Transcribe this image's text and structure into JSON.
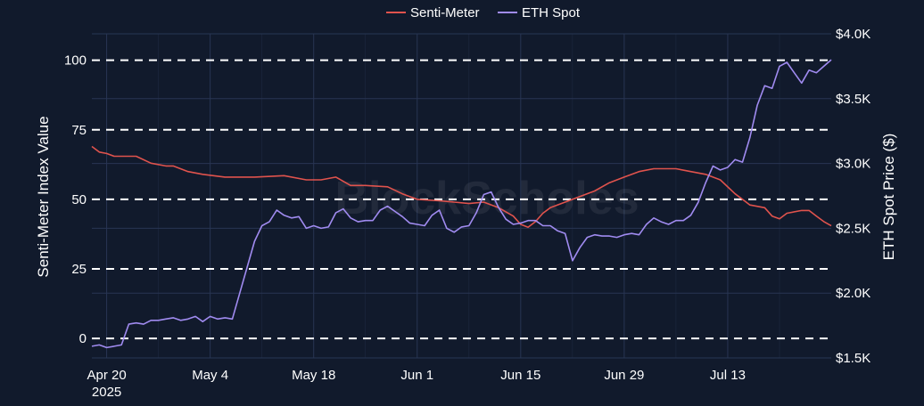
{
  "chart_data": {
    "type": "line",
    "title": "",
    "watermark": "BlockScholes",
    "colors": {
      "background": "#111a2c",
      "grid": "#283553",
      "reference_lines": "#ffffff",
      "senti_meter": "#e0534d",
      "eth_spot": "#a08bf0"
    },
    "legend": {
      "position": "top-center",
      "entries": [
        {
          "name": "Senti-Meter",
          "color": "#e0534d"
        },
        {
          "name": "ETH Spot",
          "color": "#a08bf0"
        }
      ]
    },
    "x_axis": {
      "type": "date",
      "range": [
        "2025-04-18",
        "2025-07-27"
      ],
      "ticks": [
        {
          "date": "2025-04-20",
          "label": "Apr 20",
          "sublabel": "2025"
        },
        {
          "date": "2025-05-04",
          "label": "May 4",
          "sublabel": ""
        },
        {
          "date": "2025-05-18",
          "label": "May 18",
          "sublabel": ""
        },
        {
          "date": "2025-06-01",
          "label": "Jun 1",
          "sublabel": ""
        },
        {
          "date": "2025-06-15",
          "label": "Jun 15",
          "sublabel": ""
        },
        {
          "date": "2025-06-29",
          "label": "Jun 29",
          "sublabel": ""
        },
        {
          "date": "2025-07-13",
          "label": "Jul 13",
          "sublabel": ""
        }
      ]
    },
    "y_axis_left": {
      "label": "Senti-Meter Index Value",
      "range": [
        -7,
        109.5
      ],
      "ticks": [
        0,
        25,
        50,
        75,
        100
      ],
      "tick_labels": [
        "0",
        "25",
        "50",
        "75",
        "100"
      ],
      "dashed_reference_lines": [
        0,
        25,
        50,
        75,
        100
      ]
    },
    "y_axis_right": {
      "label": "ETH Spot Price ($)",
      "range": [
        1500,
        4000
      ],
      "ticks": [
        1500,
        2000,
        2500,
        3000,
        3500,
        4000
      ],
      "tick_labels": [
        "$1.5K",
        "$2.0K",
        "$2.5K",
        "$3.0K",
        "$3.5K",
        "$4.0K"
      ]
    },
    "series": [
      {
        "name": "Senti-Meter",
        "axis": "left",
        "points": [
          [
            "2025-04-18",
            69
          ],
          [
            "2025-04-19",
            67
          ],
          [
            "2025-04-20",
            66.5
          ],
          [
            "2025-04-21",
            65.5
          ],
          [
            "2025-04-23",
            65.5
          ],
          [
            "2025-04-24",
            65.5
          ],
          [
            "2025-04-26",
            63
          ],
          [
            "2025-04-28",
            62
          ],
          [
            "2025-04-29",
            62
          ],
          [
            "2025-05-01",
            60
          ],
          [
            "2025-05-03",
            59
          ],
          [
            "2025-05-06",
            58
          ],
          [
            "2025-05-10",
            58
          ],
          [
            "2025-05-14",
            58.5
          ],
          [
            "2025-05-17",
            57
          ],
          [
            "2025-05-19",
            57
          ],
          [
            "2025-05-21",
            58
          ],
          [
            "2025-05-23",
            55
          ],
          [
            "2025-05-25",
            55
          ],
          [
            "2025-05-28",
            54.5
          ],
          [
            "2025-05-30",
            52
          ],
          [
            "2025-06-01",
            50
          ],
          [
            "2025-06-04",
            49.5
          ],
          [
            "2025-06-06",
            49
          ],
          [
            "2025-06-08",
            48.5
          ],
          [
            "2025-06-10",
            49
          ],
          [
            "2025-06-12",
            47
          ],
          [
            "2025-06-14",
            44
          ],
          [
            "2025-06-15",
            41
          ],
          [
            "2025-06-16",
            40
          ],
          [
            "2025-06-17",
            42
          ],
          [
            "2025-06-18",
            45
          ],
          [
            "2025-06-19",
            47
          ],
          [
            "2025-06-21",
            49
          ],
          [
            "2025-06-23",
            51
          ],
          [
            "2025-06-25",
            53
          ],
          [
            "2025-06-27",
            56
          ],
          [
            "2025-06-29",
            58
          ],
          [
            "2025-07-01",
            60
          ],
          [
            "2025-07-03",
            61
          ],
          [
            "2025-07-06",
            61
          ],
          [
            "2025-07-08",
            60
          ],
          [
            "2025-07-10",
            59
          ],
          [
            "2025-07-12",
            57
          ],
          [
            "2025-07-14",
            52
          ],
          [
            "2025-07-15",
            50
          ],
          [
            "2025-07-16",
            48
          ],
          [
            "2025-07-18",
            47
          ],
          [
            "2025-07-19",
            44
          ],
          [
            "2025-07-20",
            43
          ],
          [
            "2025-07-21",
            45
          ],
          [
            "2025-07-23",
            46
          ],
          [
            "2025-07-24",
            46
          ],
          [
            "2025-07-25",
            44
          ],
          [
            "2025-07-26",
            42
          ],
          [
            "2025-07-27",
            40.5
          ]
        ]
      },
      {
        "name": "ETH Spot",
        "axis": "right",
        "points": [
          [
            "2025-04-18",
            1590
          ],
          [
            "2025-04-19",
            1600
          ],
          [
            "2025-04-20",
            1580
          ],
          [
            "2025-04-21",
            1590
          ],
          [
            "2025-04-22",
            1600
          ],
          [
            "2025-04-23",
            1760
          ],
          [
            "2025-04-24",
            1770
          ],
          [
            "2025-04-25",
            1760
          ],
          [
            "2025-04-26",
            1790
          ],
          [
            "2025-04-27",
            1790
          ],
          [
            "2025-04-28",
            1800
          ],
          [
            "2025-04-29",
            1810
          ],
          [
            "2025-04-30",
            1790
          ],
          [
            "2025-05-01",
            1800
          ],
          [
            "2025-05-02",
            1820
          ],
          [
            "2025-05-03",
            1780
          ],
          [
            "2025-05-04",
            1820
          ],
          [
            "2025-05-05",
            1800
          ],
          [
            "2025-05-06",
            1810
          ],
          [
            "2025-05-07",
            1800
          ],
          [
            "2025-05-08",
            2000
          ],
          [
            "2025-05-09",
            2200
          ],
          [
            "2025-05-10",
            2400
          ],
          [
            "2025-05-11",
            2520
          ],
          [
            "2025-05-12",
            2550
          ],
          [
            "2025-05-13",
            2640
          ],
          [
            "2025-05-14",
            2600
          ],
          [
            "2025-05-15",
            2580
          ],
          [
            "2025-05-16",
            2590
          ],
          [
            "2025-05-17",
            2500
          ],
          [
            "2025-05-18",
            2520
          ],
          [
            "2025-05-19",
            2500
          ],
          [
            "2025-05-20",
            2510
          ],
          [
            "2025-05-21",
            2620
          ],
          [
            "2025-05-22",
            2650
          ],
          [
            "2025-05-23",
            2580
          ],
          [
            "2025-05-24",
            2550
          ],
          [
            "2025-05-25",
            2560
          ],
          [
            "2025-05-26",
            2560
          ],
          [
            "2025-05-27",
            2640
          ],
          [
            "2025-05-28",
            2670
          ],
          [
            "2025-05-29",
            2630
          ],
          [
            "2025-05-30",
            2590
          ],
          [
            "2025-05-31",
            2540
          ],
          [
            "2025-06-01",
            2530
          ],
          [
            "2025-06-02",
            2520
          ],
          [
            "2025-06-03",
            2600
          ],
          [
            "2025-06-04",
            2640
          ],
          [
            "2025-06-05",
            2500
          ],
          [
            "2025-06-06",
            2470
          ],
          [
            "2025-06-07",
            2510
          ],
          [
            "2025-06-08",
            2520
          ],
          [
            "2025-06-09",
            2620
          ],
          [
            "2025-06-10",
            2760
          ],
          [
            "2025-06-11",
            2780
          ],
          [
            "2025-06-12",
            2660
          ],
          [
            "2025-06-13",
            2570
          ],
          [
            "2025-06-14",
            2530
          ],
          [
            "2025-06-15",
            2540
          ],
          [
            "2025-06-16",
            2560
          ],
          [
            "2025-06-17",
            2560
          ],
          [
            "2025-06-18",
            2520
          ],
          [
            "2025-06-19",
            2520
          ],
          [
            "2025-06-20",
            2480
          ],
          [
            "2025-06-21",
            2460
          ],
          [
            "2025-06-22",
            2250
          ],
          [
            "2025-06-23",
            2350
          ],
          [
            "2025-06-24",
            2430
          ],
          [
            "2025-06-25",
            2450
          ],
          [
            "2025-06-26",
            2440
          ],
          [
            "2025-06-27",
            2440
          ],
          [
            "2025-06-28",
            2430
          ],
          [
            "2025-06-29",
            2450
          ],
          [
            "2025-06-30",
            2460
          ],
          [
            "2025-07-01",
            2450
          ],
          [
            "2025-07-02",
            2530
          ],
          [
            "2025-07-03",
            2580
          ],
          [
            "2025-07-04",
            2550
          ],
          [
            "2025-07-05",
            2530
          ],
          [
            "2025-07-06",
            2560
          ],
          [
            "2025-07-07",
            2560
          ],
          [
            "2025-07-08",
            2600
          ],
          [
            "2025-07-09",
            2700
          ],
          [
            "2025-07-10",
            2850
          ],
          [
            "2025-07-11",
            2980
          ],
          [
            "2025-07-12",
            2950
          ],
          [
            "2025-07-13",
            2970
          ],
          [
            "2025-07-14",
            3030
          ],
          [
            "2025-07-15",
            3010
          ],
          [
            "2025-07-16",
            3200
          ],
          [
            "2025-07-17",
            3450
          ],
          [
            "2025-07-18",
            3600
          ],
          [
            "2025-07-19",
            3580
          ],
          [
            "2025-07-20",
            3750
          ],
          [
            "2025-07-21",
            3780
          ],
          [
            "2025-07-22",
            3700
          ],
          [
            "2025-07-23",
            3620
          ],
          [
            "2025-07-24",
            3720
          ],
          [
            "2025-07-25",
            3700
          ],
          [
            "2025-07-26",
            3750
          ],
          [
            "2025-07-27",
            3800
          ]
        ]
      }
    ]
  }
}
